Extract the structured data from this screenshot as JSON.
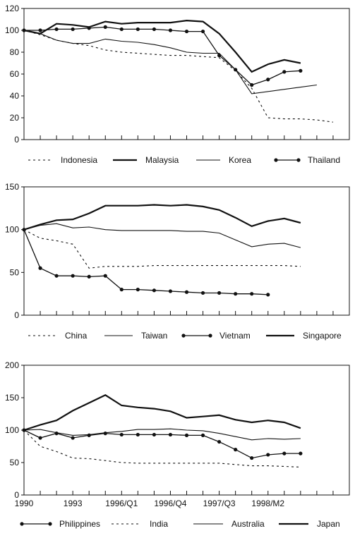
{
  "chart_data": [
    {
      "type": "line",
      "ylim": [
        0,
        120
      ],
      "yticks": [
        "0",
        "20",
        "40",
        "60",
        "80",
        "100",
        "120"
      ],
      "x_count": 20,
      "legend_position": "bottom",
      "series": [
        {
          "name": "Indonesia",
          "style": "dotted",
          "values": [
            100,
            96,
            91,
            88,
            86,
            82,
            80,
            79,
            78,
            77,
            77,
            76,
            75,
            63,
            47,
            20,
            19,
            19,
            18,
            16
          ]
        },
        {
          "name": "Malaysia",
          "style": "thick",
          "values": [
            100,
            97,
            106,
            105,
            103,
            108,
            106,
            107,
            107,
            107,
            109,
            108,
            97,
            80,
            62,
            69,
            73,
            70,
            null,
            null
          ]
        },
        {
          "name": "Korea",
          "style": "thin",
          "values": [
            100,
            97,
            91,
            88,
            88,
            92,
            90,
            89,
            87,
            84,
            80,
            79,
            79,
            64,
            42,
            44,
            46,
            48,
            50,
            null
          ]
        },
        {
          "name": "Thailand",
          "style": "marker",
          "values": [
            100,
            100,
            101,
            101,
            102,
            103,
            101,
            101,
            101,
            100,
            99,
            99,
            77,
            64,
            50,
            55,
            62,
            63,
            null,
            null
          ]
        }
      ]
    },
    {
      "type": "line",
      "ylim": [
        0,
        150
      ],
      "yticks": [
        "0",
        "50",
        "100",
        "150"
      ],
      "x_count": 20,
      "legend_position": "bottom",
      "series": [
        {
          "name": "China",
          "style": "dotted",
          "values": [
            100,
            90,
            87,
            83,
            55,
            57,
            57,
            57,
            58,
            58,
            58,
            58,
            58,
            58,
            58,
            58,
            58,
            57,
            null,
            null
          ]
        },
        {
          "name": "Taiwan",
          "style": "thin",
          "values": [
            100,
            105,
            107,
            102,
            103,
            100,
            99,
            99,
            99,
            99,
            98,
            98,
            96,
            88,
            80,
            83,
            84,
            79,
            null,
            null
          ]
        },
        {
          "name": "Vietnam",
          "style": "marker",
          "values": [
            100,
            55,
            46,
            46,
            45,
            46,
            30,
            30,
            29,
            28,
            27,
            26,
            26,
            25,
            25,
            24,
            null,
            null,
            null,
            null
          ]
        },
        {
          "name": "Singapore",
          "style": "thick",
          "values": [
            100,
            106,
            111,
            112,
            119,
            128,
            128,
            128,
            129,
            128,
            129,
            127,
            123,
            114,
            104,
            110,
            113,
            108,
            null,
            null
          ]
        }
      ]
    },
    {
      "type": "line",
      "ylim": [
        0,
        200
      ],
      "yticks": [
        "0",
        "50",
        "100",
        "150",
        "200"
      ],
      "x_count": 20,
      "legend_position": "bottom",
      "xtick_labels": [
        {
          "label": "1990",
          "index": 0
        },
        {
          "label": "1993",
          "index": 3
        },
        {
          "label": "1996/Q1",
          "index": 6
        },
        {
          "label": "1996/Q4",
          "index": 9
        },
        {
          "label": "1997/Q3",
          "index": 12
        },
        {
          "label": "1998/M2",
          "index": 15
        }
      ],
      "series": [
        {
          "name": "Philippines",
          "style": "marker",
          "values": [
            100,
            88,
            95,
            88,
            92,
            95,
            93,
            93,
            93,
            93,
            92,
            92,
            82,
            70,
            57,
            62,
            64,
            64,
            null,
            null
          ]
        },
        {
          "name": "India",
          "style": "dotted",
          "values": [
            100,
            75,
            67,
            57,
            56,
            53,
            50,
            49,
            49,
            49,
            49,
            49,
            49,
            47,
            45,
            45,
            44,
            43,
            null,
            null
          ]
        },
        {
          "name": "Australia",
          "style": "thin",
          "values": [
            100,
            101,
            96,
            92,
            93,
            96,
            98,
            101,
            101,
            102,
            100,
            99,
            95,
            90,
            85,
            87,
            86,
            87,
            null,
            null
          ]
        },
        {
          "name": "Japan",
          "style": "thick",
          "values": [
            100,
            108,
            115,
            130,
            142,
            154,
            138,
            135,
            133,
            129,
            119,
            121,
            123,
            116,
            112,
            115,
            112,
            103,
            null,
            null
          ]
        }
      ]
    }
  ]
}
